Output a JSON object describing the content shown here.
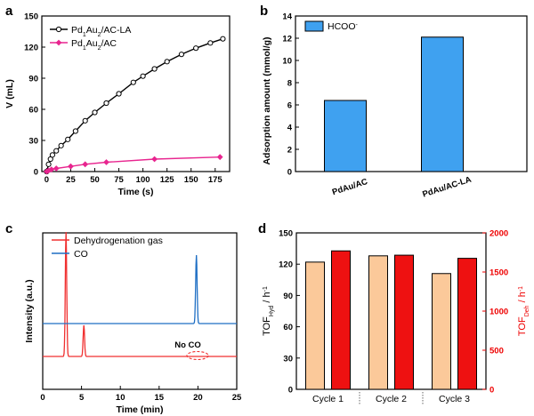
{
  "chart_data": [
    {
      "panel": "a",
      "type": "line",
      "xlabel": "Time (s)",
      "ylabel": "V (mL)",
      "xlim": [
        -5,
        190
      ],
      "ylim": [
        0,
        150
      ],
      "xticks": [
        0,
        25,
        50,
        75,
        100,
        125,
        150,
        175
      ],
      "yticks": [
        0,
        30,
        60,
        90,
        120,
        150
      ],
      "legend_position": "top-left",
      "series": [
        {
          "name_parts": [
            "Pd",
            "1",
            "Au",
            "2",
            "/AC-LA"
          ],
          "color": "#000000",
          "marker": "circle-open",
          "x": [
            0,
            2,
            4,
            6,
            10,
            15,
            22,
            30,
            40,
            50,
            62,
            75,
            90,
            100,
            112,
            125,
            140,
            155,
            170,
            183
          ],
          "y": [
            0,
            7,
            12,
            16,
            20,
            25,
            31,
            39,
            49,
            57,
            66,
            75,
            86,
            92,
            99,
            106,
            113,
            119,
            124,
            128
          ]
        },
        {
          "name_parts": [
            "Pd",
            "1",
            "Au",
            "2",
            "/AC"
          ],
          "color": "#e8258f",
          "marker": "diamond",
          "x": [
            0,
            2,
            5,
            10,
            25,
            40,
            62,
            112,
            180
          ],
          "y": [
            0,
            1,
            2,
            3,
            5,
            7,
            9,
            12,
            14
          ]
        }
      ]
    },
    {
      "panel": "b",
      "type": "bar",
      "categories": [
        "PdAu/AC",
        "PdAu/AC-LA"
      ],
      "values": [
        6.4,
        12.1
      ],
      "ylabel": "Adsorption amount (mmol/g)",
      "ylim": [
        0,
        14
      ],
      "yticks": [
        0,
        2,
        4,
        6,
        8,
        10,
        12,
        14
      ],
      "legend": [
        "HCOO",
        "-"
      ],
      "color": "#3fa1f0",
      "legend_position": "top-left"
    },
    {
      "panel": "c",
      "type": "line",
      "xlabel": "Time (min)",
      "ylabel": "Intensity (a.u.)",
      "xlim": [
        0,
        25
      ],
      "xticks": [
        0,
        5,
        10,
        15,
        20,
        25
      ],
      "legend_position": "top-left",
      "annotation": "No CO",
      "series": [
        {
          "name": "Dehydrogenation gas",
          "color": "#f03030",
          "peaks": [
            {
              "t": 3.0,
              "height": 1.0
            },
            {
              "t": 5.3,
              "height": 0.25
            }
          ]
        },
        {
          "name": "CO",
          "color": "#1f6fc4",
          "peaks": [
            {
              "t": 19.8,
              "height": 0.55
            }
          ]
        }
      ]
    },
    {
      "panel": "d",
      "type": "bar",
      "categories": [
        "Cycle 1",
        "Cycle 2",
        "Cycle 3"
      ],
      "ylabel_left": [
        "TOF",
        "Hyd",
        " / h",
        "-1"
      ],
      "ylabel_right": [
        "TOF",
        "Deh",
        " / h",
        "-1"
      ],
      "ylim_left": [
        0,
        150
      ],
      "yticks_left": [
        0,
        30,
        60,
        90,
        120,
        150
      ],
      "ylim_right": [
        0,
        2000
      ],
      "yticks_right": [
        0,
        500,
        1000,
        1500,
        2000
      ],
      "series": [
        {
          "axis": "left",
          "color": "#fbc99a",
          "values": [
            122,
            128,
            111
          ]
        },
        {
          "axis": "right",
          "color": "#ee1111",
          "values": [
            1770,
            1715,
            1675
          ]
        }
      ]
    }
  ]
}
